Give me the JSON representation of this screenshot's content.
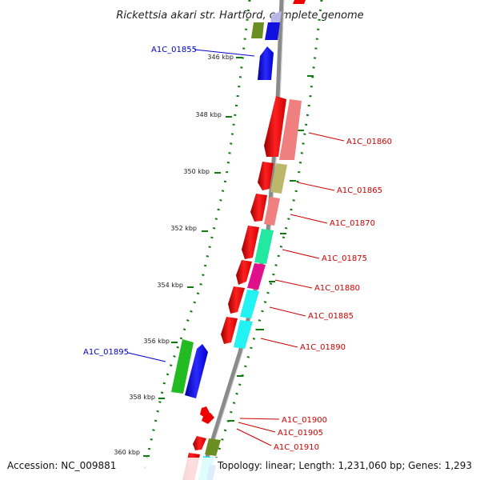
{
  "title": "Rickettsia akari str. Hartford, complete genome",
  "footer": {
    "accession": "Accession: NC_009881",
    "stats": "Topology: linear; Length: 1,231,060 bp; Genes: 1,293"
  },
  "ticks": [
    "346 kbp",
    "348 kbp",
    "350 kbp",
    "352 kbp",
    "354 kbp",
    "356 kbp",
    "358 kbp",
    "360 kbp"
  ],
  "gene_labels": [
    {
      "id": "A1C_01855",
      "strand": "minus",
      "color": "#0000cc"
    },
    {
      "id": "A1C_01860",
      "strand": "plus",
      "color": "#cc0000"
    },
    {
      "id": "A1C_01865",
      "strand": "plus",
      "color": "#cc0000"
    },
    {
      "id": "A1C_01870",
      "strand": "plus",
      "color": "#cc0000"
    },
    {
      "id": "A1C_01875",
      "strand": "plus",
      "color": "#cc0000"
    },
    {
      "id": "A1C_01880",
      "strand": "plus",
      "color": "#cc0000"
    },
    {
      "id": "A1C_01885",
      "strand": "plus",
      "color": "#cc0000"
    },
    {
      "id": "A1C_01890",
      "strand": "plus",
      "color": "#cc0000"
    },
    {
      "id": "A1C_01895",
      "strand": "minus",
      "color": "#0000cc"
    },
    {
      "id": "A1C_01900",
      "strand": "plus",
      "color": "#cc0000"
    },
    {
      "id": "A1C_01905",
      "strand": "plus",
      "color": "#cc0000"
    },
    {
      "id": "A1C_01910",
      "strand": "plus",
      "color": "#cc0000"
    }
  ],
  "colors": {
    "backbone": "#8a8a8a",
    "tick_dots": "#117a11",
    "cds_plus": "#ee0000",
    "cds_minus": "#1111dd"
  }
}
